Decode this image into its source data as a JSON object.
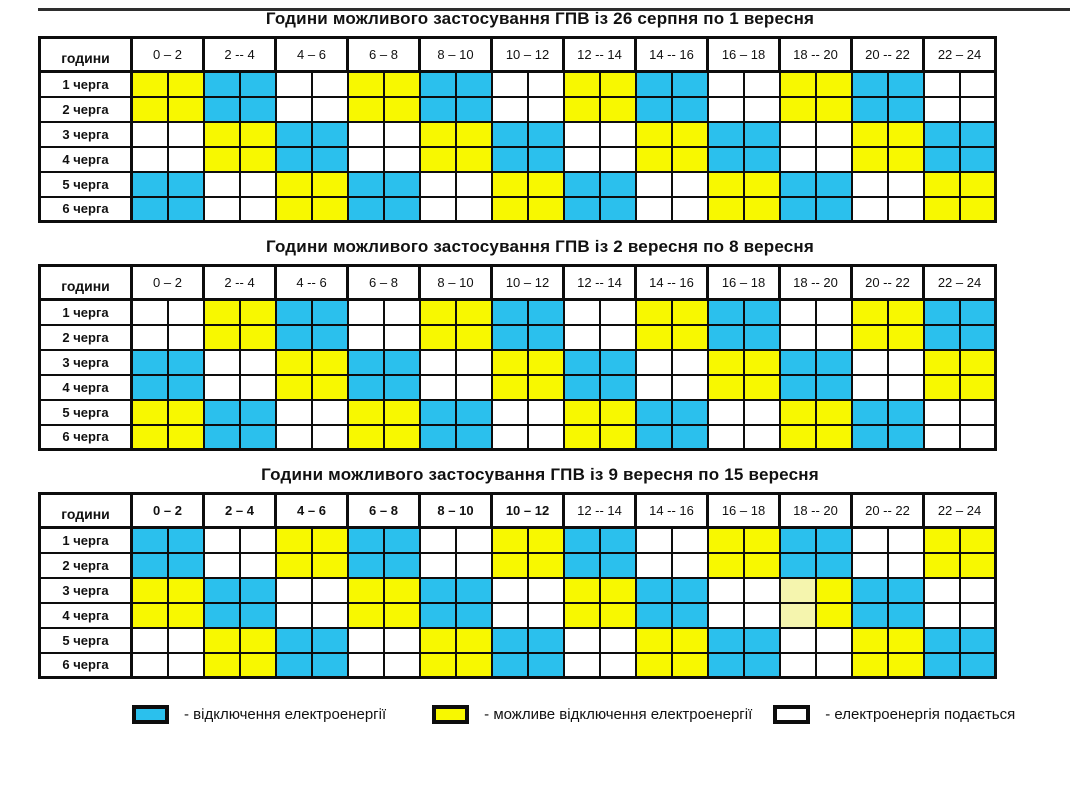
{
  "page": {
    "background": "#ffffff",
    "top_strip_color": "#2e2e2e"
  },
  "colors": {
    "C": "#2BC0ED",
    "Y": "#F8F800",
    "W": "#FFFFFF",
    "P": "#F5F5AE",
    "border": "#0d0d0d"
  },
  "chart_data": [
    {
      "type": "heatmap",
      "title": "Години можливого застосування ГПВ із 26 серпня по 1 вересня",
      "corner_label": "години",
      "columns": [
        "0 – 2",
        "2 -- 4",
        "4 – 6",
        "6 – 8",
        "8 – 10",
        "10 – 12",
        "12 -- 14",
        "14 -- 16",
        "16 – 18",
        "18 -- 20",
        "20 -- 22",
        "22 – 24"
      ],
      "bold_columns": [],
      "row_labels": [
        "1 черга",
        "2 черга",
        "3 черга",
        "4 черга",
        "5 черга",
        "6 черга"
      ],
      "cell_codes_legend": "one char per hour 0-24: C=outage(cyan), Y=possible outage(yellow), W=power on(white), P=pale-yellow cell",
      "cells": [
        "YYCCWWYYCCWWYYCCWWYYCCWW",
        "YYCCWWYYCCWWYYCCWWYYCCWW",
        "WWYYCCWWYYCCWWYYCCWWYYCC",
        "WWYYCCWWYYCCWWYYCCWWYYCC",
        "CCWWYYCCWWYYCCWWYYCCWWYY",
        "CCWWYYCCWWYYCCWWYYCCWWYY"
      ]
    },
    {
      "type": "heatmap",
      "title": "Години можливого застосування ГПВ із 2 вересня по 8 вересня",
      "corner_label": "години",
      "columns": [
        "0 – 2",
        "2 -- 4",
        "4 -- 6",
        "6 – 8",
        "8 – 10",
        "10 – 12",
        "12 -- 14",
        "14 -- 16",
        "16 – 18",
        "18 -- 20",
        "20 -- 22",
        "22 – 24"
      ],
      "bold_columns": [],
      "row_labels": [
        "1 черга",
        "2 черга",
        "3 черга",
        "4 черга",
        "5 черга",
        "6 черга"
      ],
      "cells": [
        "WWYYCCWWYYCCWWYYCCWWYYCC",
        "WWYYCCWWYYCCWWYYCCWWYYCC",
        "CCWWYYCCWWYYCCWWYYCCWWYY",
        "CCWWYYCCWWYYCCWWYYCCWWYY",
        "YYCCWWYYCCWWYYCCWWYYCCWW",
        "YYCCWWYYCCWWYYCCWWYYCCWW"
      ]
    },
    {
      "type": "heatmap",
      "title": "Години можливого застосування ГПВ із 9 вересня по 15 вересня",
      "corner_label": "години",
      "columns": [
        "0 – 2",
        "2 – 4",
        "4 – 6",
        "6 – 8",
        "8 – 10",
        "10 – 12",
        "12 -- 14",
        "14 -- 16",
        "16 – 18",
        "18 -- 20",
        "20 -- 22",
        "22 – 24"
      ],
      "bold_columns": [
        0,
        1,
        2,
        3,
        4,
        5
      ],
      "row_labels": [
        "1 черга",
        "2 черга",
        "3 черга",
        "4 черга",
        "5 черга",
        "6 черга"
      ],
      "cells": [
        "CCWWYYCCWWYYCCWWYYCCWWYY",
        "CCWWYYCCWWYYCCWWYYCCWWYY",
        "YYCCWWYYCCWWYYCCWWPYCCWW",
        "YYCCWWYYCCWWYYCCWWPYCCWW",
        "WWYYCCWWYYCCWWYYCCWWYYCC",
        "WWYYCCWWYYCCWWYYCCWWYYCC"
      ]
    }
  ],
  "legend": {
    "items": [
      {
        "color_key": "C",
        "label": "- відключення електроенергії"
      },
      {
        "color_key": "Y",
        "label": "- можливе відключення електроенергії"
      },
      {
        "color_key": "W",
        "label": "- електроенергія подається"
      }
    ]
  }
}
